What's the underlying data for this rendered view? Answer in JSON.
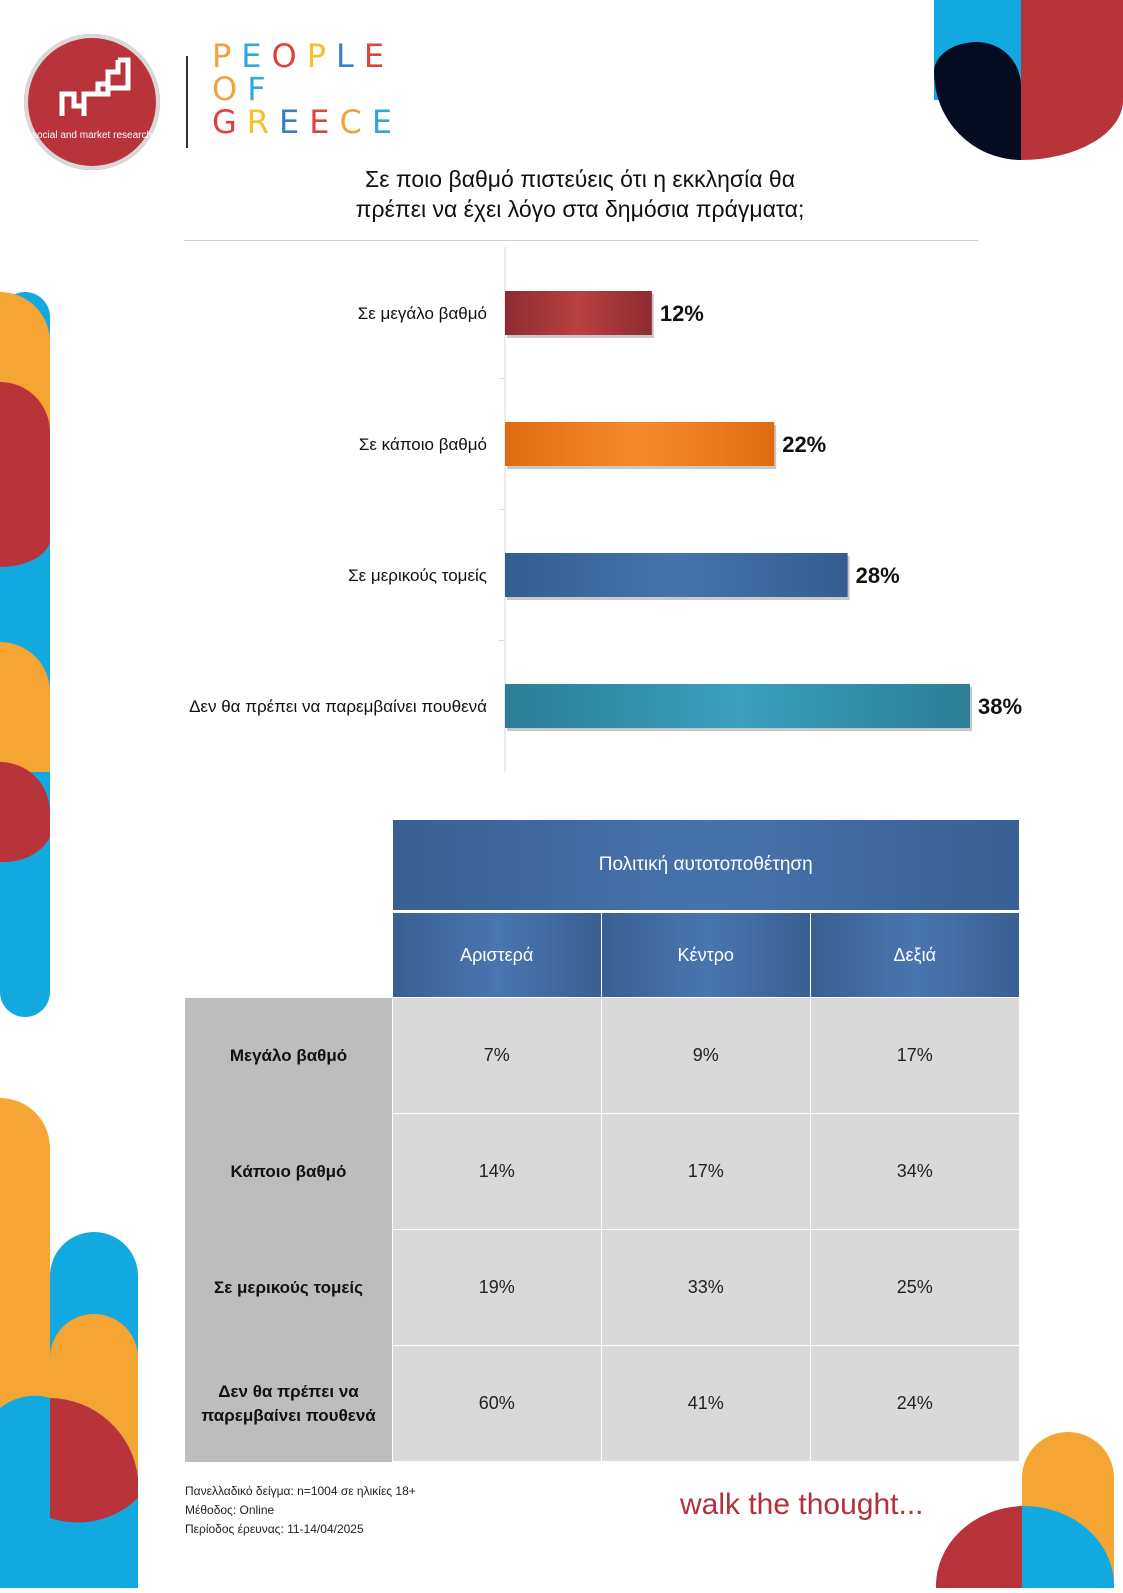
{
  "header": {
    "logo_text": "social and market research",
    "brand_lines": [
      {
        "letters": [
          "P",
          "E",
          "O",
          "P",
          "L",
          "E"
        ]
      },
      {
        "letters": [
          "O",
          "F"
        ]
      },
      {
        "letters": [
          "G",
          "R",
          "E",
          "E",
          "C",
          "E"
        ]
      }
    ],
    "brand_colors": [
      "#f2a23a",
      "#2fa9dc",
      "#e4403b",
      "#f2c12e",
      "#3b7ec2",
      "#d8473c"
    ]
  },
  "title_lines": [
    "Σε ποιο βαθμό πιστεύεις ότι η εκκλησία θα",
    "πρέπει να έχει λόγο στα δημόσια πράγματα;"
  ],
  "chart_data": {
    "type": "bar",
    "orientation": "horizontal",
    "categories": [
      "Σε μεγάλο βαθμό",
      "Σε κάποιο βαθμό",
      "Σε μερικούς τομείς",
      "Δεν θα πρέπει να παρεμβαίνει πουθενά"
    ],
    "values": [
      12,
      22,
      28,
      38
    ],
    "labels": [
      "12%",
      "22%",
      "28%",
      "38%"
    ],
    "colors": [
      [
        "#8e2b30",
        "#b9403f",
        "#8e2b30"
      ],
      [
        "#df6c10",
        "#f58a2c",
        "#df6c10"
      ],
      [
        "#345e92",
        "#4473ad",
        "#345e92"
      ],
      [
        "#2d7e97",
        "#3aa0bd",
        "#2d7e97"
      ]
    ],
    "xlim": [
      0,
      38
    ],
    "grid": false,
    "legend": "none"
  },
  "table": {
    "group_header": "Πολιτική αυτοτοποθέτηση",
    "columns": [
      "Αριστερά",
      "Κέντρο",
      "Δεξιά"
    ],
    "rows": [
      {
        "label": "Μεγάλο βαθμό",
        "values": [
          "7%",
          "9%",
          "17%"
        ]
      },
      {
        "label": "Κάποιο βαθμό",
        "values": [
          "14%",
          "17%",
          "34%"
        ]
      },
      {
        "label": "Σε μερικούς τομείς",
        "values": [
          "19%",
          "33%",
          "25%"
        ]
      },
      {
        "label": "Δεν θα πρέπει να παρεμβαίνει πουθενά",
        "values": [
          "60%",
          "41%",
          "24%"
        ]
      }
    ]
  },
  "footer": {
    "notes": [
      "Πανελλαδικό δείγμα: n=1004 σε ηλικίες 18+",
      "Μέθοδος: Online",
      "Περίοδος έρευνας: 11-14/04/2025"
    ],
    "tagline": "walk the thought..."
  },
  "colors": {
    "red": "#b8333a",
    "orange": "#f5a533",
    "blue": "#12a9e0",
    "navy": "#050c1f"
  }
}
